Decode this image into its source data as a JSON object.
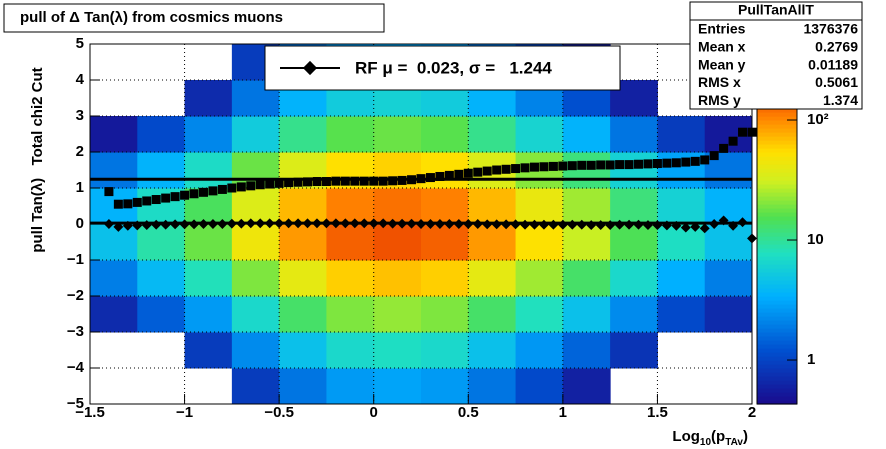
{
  "chart_data": {
    "type": "heatmap",
    "title": "pull of Δ Tan(λ) from cosmics muons",
    "y_label": "pull Tan(λ)   Total chi2 Cut",
    "x_label": [
      "Log",
      "10",
      "(p",
      "TAv",
      ")"
    ],
    "xlim": [
      -1.5,
      2
    ],
    "ylim": [
      -5,
      5
    ],
    "xticks": [
      {
        "value": -1.5,
        "label": "−1.5"
      },
      {
        "value": -1,
        "label": "−1"
      },
      {
        "value": -0.5,
        "label": "−0.5"
      },
      0,
      0.5,
      1,
      1.5,
      2
    ],
    "yticks": [
      {
        "value": -5,
        "label": "−5"
      },
      {
        "value": -4,
        "label": "−4"
      },
      {
        "value": -3,
        "label": "−3"
      },
      {
        "value": -2,
        "label": "−2"
      },
      {
        "value": -1,
        "label": "−1"
      },
      0,
      1,
      2,
      3,
      4,
      5
    ],
    "grid": true,
    "zlim": [
      0.43,
      430
    ],
    "zlog": true,
    "zticks": [
      1,
      10,
      {
        "value": 100,
        "label": "10²"
      }
    ],
    "xbins": [
      -1.5,
      -1.25,
      -1,
      -0.75,
      -0.5,
      -0.25,
      0,
      0.25,
      0.5,
      0.75,
      1,
      1.25,
      1.5,
      1.75,
      2
    ],
    "ybins": [
      -5,
      -4,
      -3,
      -2,
      -1,
      0,
      1,
      2,
      3,
      4,
      5
    ],
    "z": [
      [
        null,
        null,
        null,
        0.9,
        1.8,
        2.7,
        3,
        2.7,
        1.8,
        1.1,
        0.6,
        null,
        null,
        null
      ],
      [
        null,
        null,
        0.9,
        2.3,
        4.5,
        6.8,
        7.5,
        6.8,
        4.5,
        2.6,
        1.5,
        0.8,
        null,
        null
      ],
      [
        0.7,
        1.4,
        2.7,
        6.8,
        13.5,
        20,
        22.5,
        20,
        13.5,
        7.9,
        4.5,
        2.3,
        1.1,
        0.7
      ],
      [
        2,
        4,
        8.1,
        20,
        40,
        61,
        67.5,
        61,
        40,
        24,
        13.5,
        6.8,
        3.4,
        2
      ],
      [
        4.5,
        9,
        18,
        45,
        90,
        135,
        150,
        135,
        90,
        53,
        30,
        15,
        7.5,
        4.5
      ],
      [
        3.6,
        7.2,
        14.4,
        36,
        72,
        108,
        120,
        108,
        72,
        42,
        24,
        12,
        6,
        3.6
      ],
      [
        1.8,
        3.6,
        7.2,
        18,
        36,
        54,
        60,
        54,
        36,
        21,
        12,
        6,
        3,
        1.8
      ],
      [
        0.54,
        1.1,
        2.2,
        5.4,
        10.8,
        16.2,
        18,
        16.2,
        10.8,
        6.3,
        3.6,
        1.8,
        0.9,
        0.54
      ],
      [
        null,
        null,
        0.7,
        1.8,
        3.6,
        5.4,
        6,
        5.4,
        3.6,
        2.1,
        1.2,
        0.6,
        null,
        null
      ],
      [
        null,
        null,
        null,
        0.9,
        1.8,
        2.7,
        3,
        2.7,
        1.8,
        1.1,
        0.6,
        null,
        null,
        null
      ]
    ],
    "x": [
      -1.4,
      -1.35,
      -1.3,
      -1.25,
      -1.2,
      -1.15,
      -1.1,
      -1.05,
      -1,
      -0.95,
      -0.9,
      -0.85,
      -0.8,
      -0.75,
      -0.7,
      -0.65,
      -0.6,
      -0.55,
      -0.5,
      -0.45,
      -0.4,
      -0.35,
      -0.3,
      -0.25,
      -0.2,
      -0.15,
      -0.1,
      -0.05,
      0,
      0.05,
      0.1,
      0.15,
      0.2,
      0.25,
      0.3,
      0.35,
      0.4,
      0.45,
      0.5,
      0.55,
      0.6,
      0.65,
      0.7,
      0.75,
      0.8,
      0.85,
      0.9,
      0.95,
      1,
      1.05,
      1.1,
      1.15,
      1.2,
      1.25,
      1.3,
      1.35,
      1.4,
      1.45,
      1.5,
      1.55,
      1.6,
      1.65,
      1.7,
      1.75,
      1.8,
      1.85,
      1.9,
      1.95,
      2
    ],
    "series": [
      {
        "marker": "square",
        "color": "#000000",
        "values": [
          0.9,
          0.55,
          0.56,
          0.6,
          0.64,
          0.68,
          0.72,
          0.76,
          0.8,
          0.84,
          0.88,
          0.92,
          0.96,
          1.0,
          1.03,
          1.06,
          1.09,
          1.11,
          1.13,
          1.15,
          1.16,
          1.17,
          1.18,
          1.18,
          1.19,
          1.19,
          1.19,
          1.19,
          1.19,
          1.19,
          1.2,
          1.21,
          1.23,
          1.26,
          1.29,
          1.32,
          1.35,
          1.38,
          1.41,
          1.44,
          1.47,
          1.5,
          1.52,
          1.54,
          1.56,
          1.58,
          1.59,
          1.6,
          1.61,
          1.62,
          1.63,
          1.63,
          1.64,
          1.64,
          1.65,
          1.65,
          1.66,
          1.67,
          1.68,
          1.69,
          1.7,
          1.72,
          1.74,
          1.78,
          1.9,
          2.1,
          2.3,
          2.55,
          2.55
        ]
      },
      {
        "marker": "diamond",
        "color": "#000000",
        "values": [
          0.0,
          -0.08,
          -0.05,
          -0.04,
          -0.03,
          -0.02,
          -0.02,
          -0.01,
          -0.01,
          -0.01,
          0.0,
          0.0,
          0.0,
          0.01,
          0.01,
          0.02,
          0.02,
          0.02,
          0.02,
          0.02,
          0.02,
          0.02,
          0.02,
          0.02,
          0.02,
          0.02,
          0.02,
          0.02,
          0.02,
          0.02,
          0.01,
          0.01,
          0.01,
          0.0,
          0.0,
          0.0,
          0.0,
          0.0,
          0.0,
          0.0,
          -0.01,
          -0.01,
          -0.01,
          -0.01,
          -0.02,
          -0.02,
          -0.02,
          -0.02,
          -0.02,
          -0.02,
          -0.02,
          -0.03,
          -0.03,
          -0.03,
          -0.02,
          -0.02,
          -0.02,
          -0.03,
          -0.03,
          -0.04,
          -0.05,
          -0.1,
          -0.08,
          -0.12,
          0.0,
          0.1,
          -0.05,
          0.05,
          -0.4
        ]
      }
    ],
    "fit_mean": 0.023,
    "fit_sigma": 1.244,
    "legend": "RF μ =  0.023, σ =   1.244",
    "stats": {
      "title": "PullTanAllT",
      "rows": [
        [
          "Entries",
          "1376376"
        ],
        [
          "Mean x",
          "0.2769"
        ],
        [
          "Mean y",
          "0.01189"
        ],
        [
          "RMS x",
          "0.5061"
        ],
        [
          "RMS y",
          "1.374"
        ]
      ]
    }
  }
}
